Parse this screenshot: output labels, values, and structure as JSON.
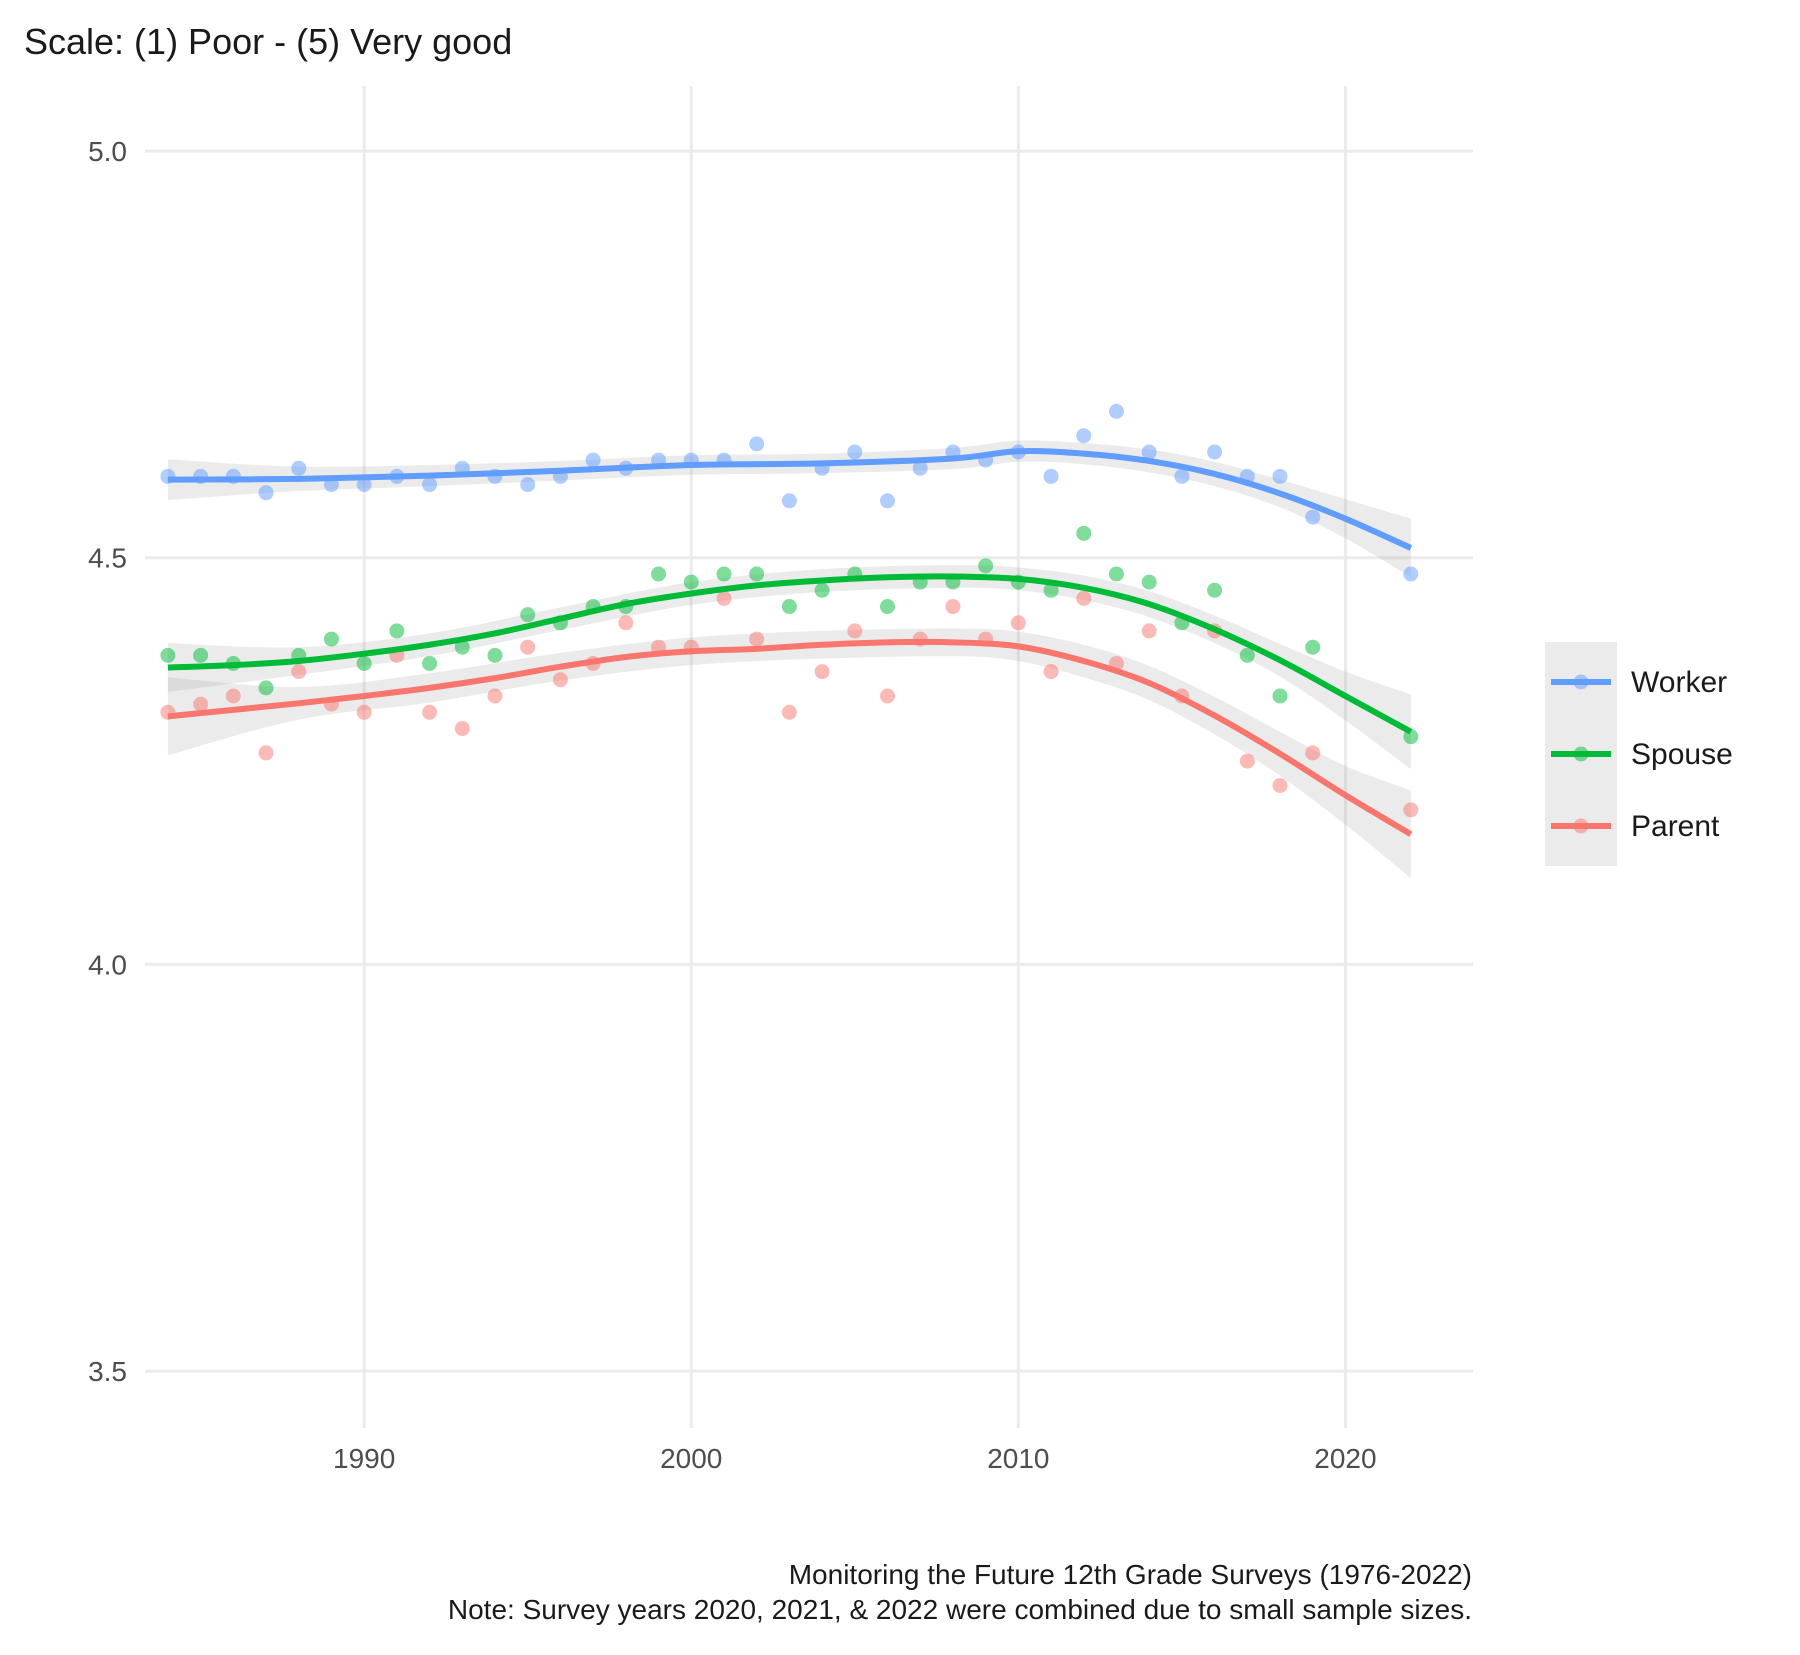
{
  "chart_data": {
    "type": "line",
    "title": "Scale: (1) Poor - (5) Very good",
    "xlabel": "",
    "ylabel": "",
    "xlim": [
      1983.3,
      2023.9
    ],
    "ylim": [
      3.43,
      5.08
    ],
    "x_ticks": [
      1990,
      2000,
      2010,
      2020
    ],
    "y_ticks": [
      3.5,
      4.0,
      4.5,
      5.0
    ],
    "y_tick_labels": [
      "3.5",
      "4.0",
      "4.5",
      "5.0"
    ],
    "grid": true,
    "legend_position": "right",
    "caption_lines": [
      "Monitoring the Future 12th Grade Surveys (1976-2022)",
      "Note: Survey years 2020, 2021, & 2022 were combined due to small sample sizes."
    ],
    "series": [
      {
        "name": "Worker",
        "color": "#619CFF",
        "points": [
          [
            1984,
            4.6
          ],
          [
            1985,
            4.6
          ],
          [
            1986,
            4.6
          ],
          [
            1987,
            4.58
          ],
          [
            1988,
            4.61
          ],
          [
            1989,
            4.59
          ],
          [
            1990,
            4.59
          ],
          [
            1991,
            4.6
          ],
          [
            1992,
            4.59
          ],
          [
            1993,
            4.61
          ],
          [
            1994,
            4.6
          ],
          [
            1995,
            4.59
          ],
          [
            1996,
            4.6
          ],
          [
            1997,
            4.62
          ],
          [
            1998,
            4.61
          ],
          [
            1999,
            4.62
          ],
          [
            2000,
            4.62
          ],
          [
            2001,
            4.62
          ],
          [
            2002,
            4.64
          ],
          [
            2003,
            4.57
          ],
          [
            2004,
            4.61
          ],
          [
            2005,
            4.63
          ],
          [
            2006,
            4.57
          ],
          [
            2007,
            4.61
          ],
          [
            2008,
            4.63
          ],
          [
            2009,
            4.62
          ],
          [
            2010,
            4.63
          ],
          [
            2011,
            4.6
          ],
          [
            2012,
            4.65
          ],
          [
            2013,
            4.68
          ],
          [
            2014,
            4.63
          ],
          [
            2015,
            4.6
          ],
          [
            2016,
            4.63
          ],
          [
            2017,
            4.6
          ],
          [
            2018,
            4.6
          ],
          [
            2019,
            4.55
          ],
          [
            2022,
            4.48
          ]
        ],
        "smooth": [
          [
            1984,
            4.596
          ],
          [
            1988,
            4.597
          ],
          [
            1992,
            4.601
          ],
          [
            1996,
            4.607
          ],
          [
            2000,
            4.614
          ],
          [
            2004,
            4.616
          ],
          [
            2008,
            4.622
          ],
          [
            2010,
            4.631
          ],
          [
            2012,
            4.628
          ],
          [
            2014,
            4.619
          ],
          [
            2016,
            4.603
          ],
          [
            2018,
            4.579
          ],
          [
            2020,
            4.548
          ],
          [
            2022,
            4.512
          ]
        ],
        "band": [
          [
            1984,
            4.571,
            4.621
          ],
          [
            1988,
            4.582,
            4.612
          ],
          [
            1992,
            4.588,
            4.614
          ],
          [
            1996,
            4.595,
            4.619
          ],
          [
            2000,
            4.602,
            4.626
          ],
          [
            2004,
            4.604,
            4.628
          ],
          [
            2008,
            4.609,
            4.635
          ],
          [
            2010,
            4.618,
            4.644
          ],
          [
            2012,
            4.615,
            4.641
          ],
          [
            2014,
            4.605,
            4.633
          ],
          [
            2016,
            4.588,
            4.618
          ],
          [
            2018,
            4.562,
            4.596
          ],
          [
            2020,
            4.524,
            4.572
          ],
          [
            2022,
            4.476,
            4.548
          ]
        ]
      },
      {
        "name": "Spouse",
        "color": "#00BA38",
        "points": [
          [
            1984,
            4.38
          ],
          [
            1985,
            4.38
          ],
          [
            1986,
            4.37
          ],
          [
            1987,
            4.34
          ],
          [
            1988,
            4.38
          ],
          [
            1989,
            4.4
          ],
          [
            1990,
            4.37
          ],
          [
            1991,
            4.41
          ],
          [
            1992,
            4.37
          ],
          [
            1993,
            4.39
          ],
          [
            1994,
            4.38
          ],
          [
            1995,
            4.43
          ],
          [
            1996,
            4.42
          ],
          [
            1997,
            4.44
          ],
          [
            1998,
            4.44
          ],
          [
            1999,
            4.48
          ],
          [
            2000,
            4.47
          ],
          [
            2001,
            4.48
          ],
          [
            2002,
            4.48
          ],
          [
            2003,
            4.44
          ],
          [
            2004,
            4.46
          ],
          [
            2005,
            4.48
          ],
          [
            2006,
            4.44
          ],
          [
            2007,
            4.47
          ],
          [
            2008,
            4.47
          ],
          [
            2009,
            4.49
          ],
          [
            2010,
            4.47
          ],
          [
            2011,
            4.46
          ],
          [
            2012,
            4.53
          ],
          [
            2013,
            4.48
          ],
          [
            2014,
            4.47
          ],
          [
            2015,
            4.42
          ],
          [
            2016,
            4.46
          ],
          [
            2017,
            4.38
          ],
          [
            2018,
            4.33
          ],
          [
            2019,
            4.39
          ],
          [
            2022,
            4.28
          ]
        ],
        "smooth": [
          [
            1984,
            4.365
          ],
          [
            1986,
            4.368
          ],
          [
            1988,
            4.373
          ],
          [
            1990,
            4.382
          ],
          [
            1992,
            4.393
          ],
          [
            1994,
            4.407
          ],
          [
            1996,
            4.425
          ],
          [
            1998,
            4.443
          ],
          [
            2000,
            4.456
          ],
          [
            2002,
            4.466
          ],
          [
            2004,
            4.472
          ],
          [
            2006,
            4.476
          ],
          [
            2008,
            4.477
          ],
          [
            2010,
            4.474
          ],
          [
            2012,
            4.463
          ],
          [
            2014,
            4.443
          ],
          [
            2016,
            4.412
          ],
          [
            2018,
            4.374
          ],
          [
            2020,
            4.33
          ],
          [
            2022,
            4.286
          ]
        ],
        "band": [
          [
            1984,
            4.335,
            4.395
          ],
          [
            1988,
            4.356,
            4.39
          ],
          [
            1992,
            4.379,
            4.407
          ],
          [
            1996,
            4.411,
            4.439
          ],
          [
            2000,
            4.442,
            4.47
          ],
          [
            2004,
            4.458,
            4.486
          ],
          [
            2008,
            4.463,
            4.491
          ],
          [
            2010,
            4.46,
            4.488
          ],
          [
            2012,
            4.448,
            4.478
          ],
          [
            2014,
            4.427,
            4.459
          ],
          [
            2016,
            4.395,
            4.429
          ],
          [
            2018,
            4.354,
            4.394
          ],
          [
            2020,
            4.3,
            4.36
          ],
          [
            2022,
            4.24,
            4.332
          ]
        ]
      },
      {
        "name": "Parent",
        "color": "#F8766D",
        "points": [
          [
            1984,
            4.31
          ],
          [
            1985,
            4.32
          ],
          [
            1986,
            4.33
          ],
          [
            1987,
            4.26
          ],
          [
            1988,
            4.36
          ],
          [
            1989,
            4.32
          ],
          [
            1990,
            4.31
          ],
          [
            1991,
            4.38
          ],
          [
            1992,
            4.31
          ],
          [
            1993,
            4.29
          ],
          [
            1994,
            4.33
          ],
          [
            1995,
            4.39
          ],
          [
            1996,
            4.35
          ],
          [
            1997,
            4.37
          ],
          [
            1998,
            4.42
          ],
          [
            1999,
            4.39
          ],
          [
            2000,
            4.39
          ],
          [
            2001,
            4.45
          ],
          [
            2002,
            4.4
          ],
          [
            2003,
            4.31
          ],
          [
            2004,
            4.36
          ],
          [
            2005,
            4.41
          ],
          [
            2006,
            4.33
          ],
          [
            2007,
            4.4
          ],
          [
            2008,
            4.44
          ],
          [
            2009,
            4.4
          ],
          [
            2010,
            4.42
          ],
          [
            2011,
            4.36
          ],
          [
            2012,
            4.45
          ],
          [
            2013,
            4.37
          ],
          [
            2014,
            4.41
          ],
          [
            2015,
            4.33
          ],
          [
            2016,
            4.41
          ],
          [
            2017,
            4.25
          ],
          [
            2018,
            4.22
          ],
          [
            2019,
            4.26
          ],
          [
            2022,
            4.19
          ]
        ],
        "smooth": [
          [
            1984,
            4.305
          ],
          [
            1986,
            4.313
          ],
          [
            1988,
            4.321
          ],
          [
            1990,
            4.33
          ],
          [
            1992,
            4.34
          ],
          [
            1994,
            4.352
          ],
          [
            1996,
            4.366
          ],
          [
            1998,
            4.378
          ],
          [
            2000,
            4.385
          ],
          [
            2002,
            4.388
          ],
          [
            2004,
            4.393
          ],
          [
            2006,
            4.396
          ],
          [
            2008,
            4.396
          ],
          [
            2010,
            4.391
          ],
          [
            2012,
            4.373
          ],
          [
            2014,
            4.346
          ],
          [
            2016,
            4.306
          ],
          [
            2018,
            4.259
          ],
          [
            2020,
            4.208
          ],
          [
            2022,
            4.16
          ]
        ],
        "band": [
          [
            1984,
            4.257,
            4.353
          ],
          [
            1988,
            4.301,
            4.341
          ],
          [
            1992,
            4.322,
            4.358
          ],
          [
            1996,
            4.349,
            4.383
          ],
          [
            2000,
            4.368,
            4.402
          ],
          [
            2004,
            4.376,
            4.41
          ],
          [
            2008,
            4.379,
            4.413
          ],
          [
            2010,
            4.373,
            4.409
          ],
          [
            2012,
            4.353,
            4.393
          ],
          [
            2014,
            4.325,
            4.367
          ],
          [
            2016,
            4.283,
            4.329
          ],
          [
            2018,
            4.232,
            4.286
          ],
          [
            2020,
            4.172,
            4.244
          ],
          [
            2022,
            4.106,
            4.214
          ]
        ]
      }
    ]
  }
}
